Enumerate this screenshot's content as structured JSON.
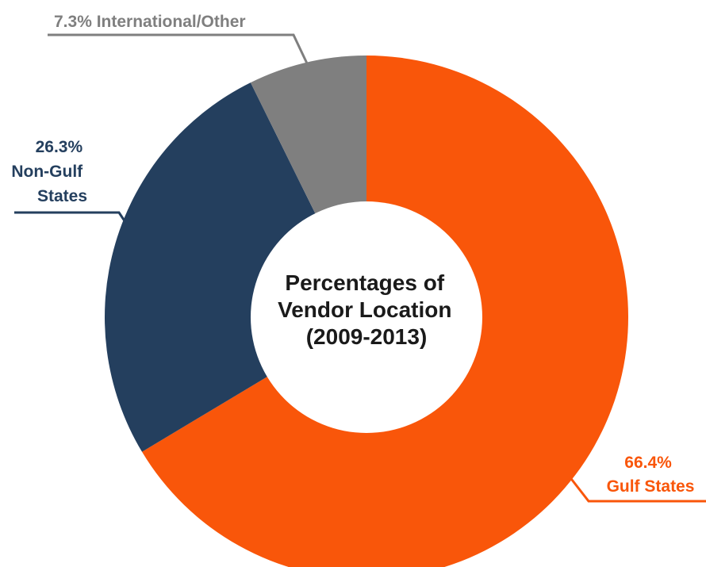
{
  "chart_data": {
    "type": "pie",
    "title_lines": [
      "Percentages of",
      "Vendor Location",
      "(2009-2013)"
    ],
    "slices": [
      {
        "category": "Gulf States",
        "value": 66.4,
        "value_label": "66.4%",
        "label_lines": [
          "66.4%",
          "Gulf States"
        ],
        "color": "#f9560a"
      },
      {
        "category": "Non-Gulf States",
        "value": 26.3,
        "value_label": "26.3%",
        "label_lines": [
          "26.3%",
          "Non-Gulf",
          "States"
        ],
        "color": "#243f5e"
      },
      {
        "category": "International/Other",
        "value": 7.3,
        "value_label": "7.3%",
        "label_lines": [
          "7.3% International/Other"
        ],
        "color": "#7f7f7f"
      }
    ],
    "donut": true,
    "legend": "none",
    "grid": false
  }
}
